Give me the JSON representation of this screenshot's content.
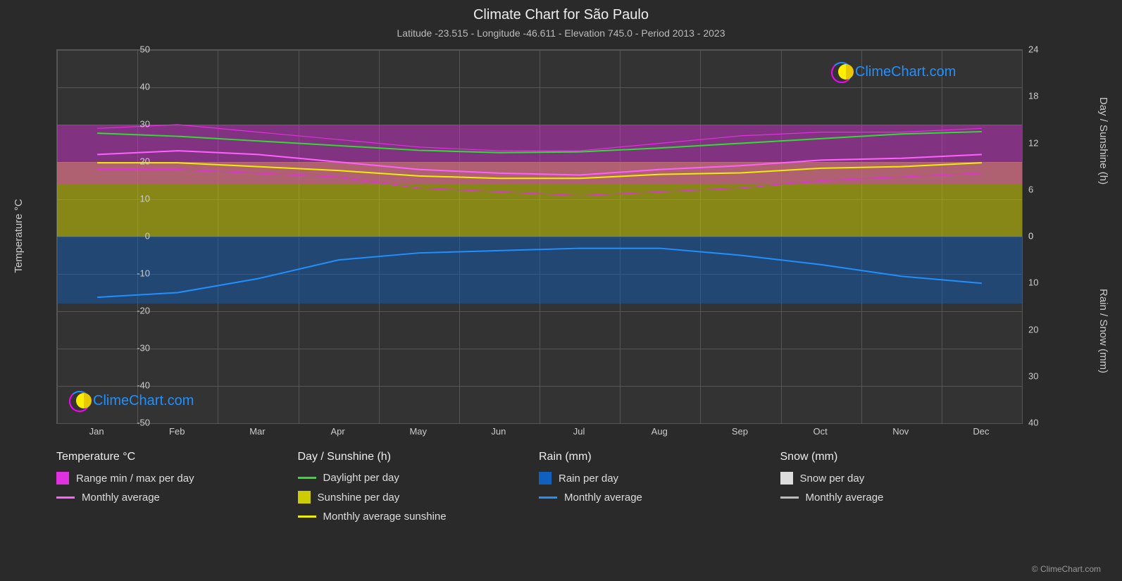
{
  "title": "Climate Chart for São Paulo",
  "subtitle": "Latitude -23.515 - Longitude -46.611 - Elevation 745.0 - Period 2013 - 2023",
  "axis_left_title": "Temperature °C",
  "axis_right_top_title": "Day / Sunshine (h)",
  "axis_right_bottom_title": "Rain / Snow (mm)",
  "copyright": "© ClimeChart.com",
  "watermark_text": "ClimeChart.com",
  "colors": {
    "background": "#2a2a2a",
    "plot_bg": "#333333",
    "grid": "#555555",
    "text": "#cccccc",
    "temp_range": "#e030e0",
    "temp_avg_line": "#ff60ff",
    "daylight_line": "#30dd30",
    "sunshine_fill": "#cccc00",
    "sunshine_line": "#eeee00",
    "rain_fill": "#1060c0",
    "rain_line": "#2090ff",
    "snow_fill": "#dddddd",
    "snow_line": "#bbbbbb"
  },
  "left_axis": {
    "min": -50,
    "max": 50,
    "ticks": [
      -50,
      -40,
      -30,
      -20,
      -10,
      0,
      10,
      20,
      30,
      40,
      50
    ]
  },
  "right_axis_top": {
    "min": 0,
    "max": 24,
    "ticks": [
      0,
      6,
      12,
      18,
      24
    ]
  },
  "right_axis_bottom": {
    "min": 0,
    "max": 40,
    "ticks": [
      0,
      10,
      20,
      30,
      40
    ]
  },
  "months": [
    "Jan",
    "Feb",
    "Mar",
    "Apr",
    "May",
    "Jun",
    "Jul",
    "Aug",
    "Sep",
    "Oct",
    "Nov",
    "Dec"
  ],
  "series": {
    "temp_min": [
      18,
      18,
      17,
      16,
      13,
      12,
      11,
      12,
      13,
      15,
      16,
      17
    ],
    "temp_max": [
      29,
      30,
      28,
      26,
      24,
      23,
      23,
      25,
      27,
      28,
      28,
      29
    ],
    "temp_avg": [
      22,
      23,
      22,
      20,
      18,
      17,
      16.5,
      18,
      19,
      20.5,
      21,
      22
    ],
    "daylight_h": [
      13.3,
      12.9,
      12.3,
      11.7,
      11.1,
      10.8,
      10.9,
      11.4,
      12.0,
      12.6,
      13.2,
      13.5
    ],
    "sunshine_h": [
      9.5,
      9.5,
      9.0,
      8.5,
      7.8,
      7.5,
      7.5,
      8.0,
      8.2,
      8.8,
      9.0,
      9.5
    ],
    "rain_mm": [
      13.0,
      12.0,
      9.0,
      5.0,
      3.5,
      3.0,
      2.5,
      2.5,
      4.0,
      6.0,
      8.5,
      10.0
    ],
    "snow_mm": [
      0,
      0,
      0,
      0,
      0,
      0,
      0,
      0,
      0,
      0,
      0,
      0
    ]
  },
  "bands": {
    "sunshine_fill": {
      "top_C": 20,
      "bottom_C": 0,
      "opacity": 0.55
    },
    "temp_fill": {
      "top_C": 30,
      "bottom_C": 14,
      "opacity": 0.45
    },
    "rain_fill": {
      "top_C": 0,
      "bottom_C": -18,
      "opacity": 0.45
    }
  },
  "legend": [
    {
      "heading": "Temperature °C",
      "items": [
        {
          "kind": "swatch",
          "color": "#e030e0",
          "label": "Range min / max per day"
        },
        {
          "kind": "line",
          "color": "#ff60ff",
          "label": "Monthly average"
        }
      ]
    },
    {
      "heading": "Day / Sunshine (h)",
      "items": [
        {
          "kind": "line",
          "color": "#30dd30",
          "label": "Daylight per day"
        },
        {
          "kind": "swatch",
          "color": "#cccc00",
          "label": "Sunshine per day"
        },
        {
          "kind": "line",
          "color": "#eeee00",
          "label": "Monthly average sunshine"
        }
      ]
    },
    {
      "heading": "Rain (mm)",
      "items": [
        {
          "kind": "swatch",
          "color": "#1060c0",
          "label": "Rain per day"
        },
        {
          "kind": "line",
          "color": "#2090ff",
          "label": "Monthly average"
        }
      ]
    },
    {
      "heading": "Snow (mm)",
      "items": [
        {
          "kind": "swatch",
          "color": "#dddddd",
          "label": "Snow per day"
        },
        {
          "kind": "line",
          "color": "#bbbbbb",
          "label": "Monthly average"
        }
      ]
    }
  ]
}
